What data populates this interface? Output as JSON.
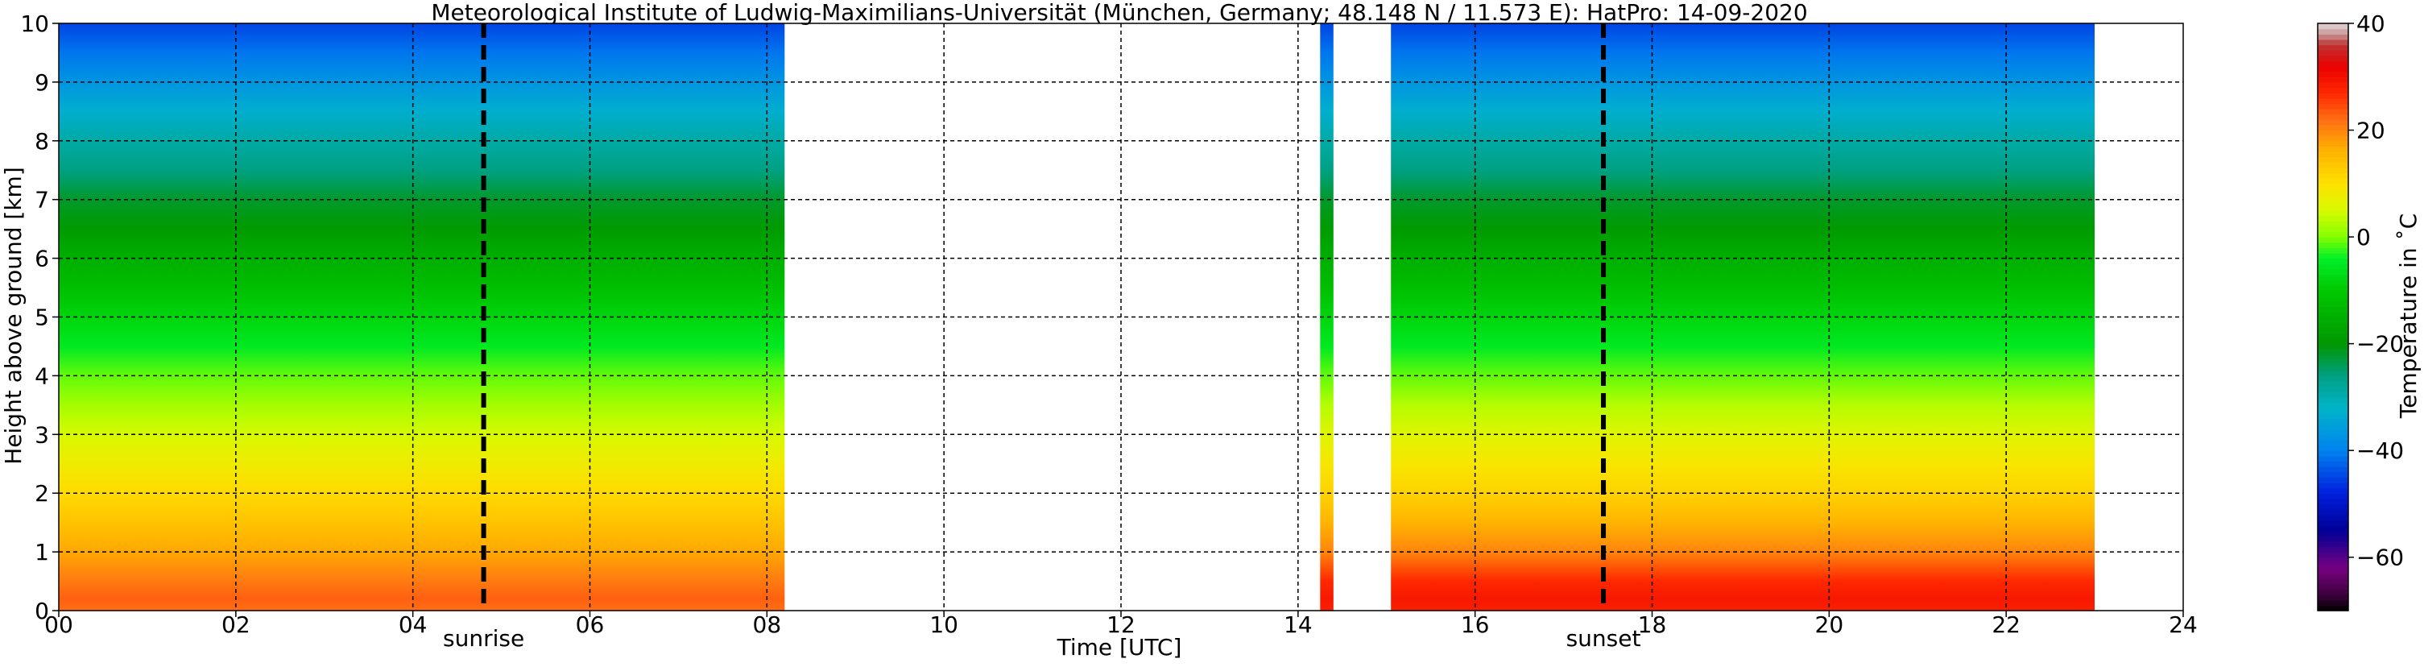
{
  "chart_data": {
    "type": "heatmap",
    "title": "Meteorological Institute of Ludwig-Maximilians-Universität (München, Germany; 48.148 N / 11.573 E):    HatPro: 14-09-2020",
    "xlabel": "Time [UTC]",
    "ylabel": "Height above ground [km]",
    "xlim": [
      0,
      24
    ],
    "ylim": [
      0,
      10
    ],
    "x_ticks": [
      "00",
      "02",
      "04",
      "06",
      "08",
      "10",
      "12",
      "14",
      "16",
      "18",
      "20",
      "22",
      "24"
    ],
    "y_ticks": [
      "0",
      "1",
      "2",
      "3",
      "4",
      "5",
      "6",
      "7",
      "8",
      "9",
      "10"
    ],
    "grid": true,
    "colorbar": {
      "label": "Temperature in ˚C",
      "ticks": [
        "40",
        "20",
        "0",
        "−20",
        "−40",
        "−60"
      ],
      "tick_values": [
        40,
        20,
        0,
        -20,
        -40,
        -60
      ],
      "range": [
        -70,
        40
      ]
    },
    "data_segments": [
      {
        "start_hour": 0.0,
        "end_hour": 8.2
      },
      {
        "start_hour": 14.25,
        "end_hour": 14.4
      },
      {
        "start_hour": 15.05,
        "end_hour": 23.0
      }
    ],
    "profiles": [
      {
        "segment": "morning",
        "height_km": [
          0,
          0.2,
          0.5,
          1,
          1.5,
          2,
          2.5,
          3,
          3.5,
          4,
          4.5,
          5,
          5.5,
          6,
          6.5,
          7,
          7.5,
          8,
          8.5,
          9,
          9.5,
          10
        ],
        "temperature_c": [
          22,
          23,
          21,
          17,
          14,
          11,
          8,
          5,
          2,
          -1,
          -5,
          -8,
          -12,
          -15,
          -19,
          -22,
          -26,
          -29,
          -33,
          -37,
          -41,
          -45
        ]
      },
      {
        "segment": "evening",
        "height_km": [
          0,
          0.2,
          0.5,
          1,
          1.5,
          2,
          2.5,
          3,
          3.5,
          4,
          4.5,
          5,
          5.5,
          6,
          6.5,
          7,
          7.5,
          8,
          8.5,
          9,
          9.5,
          10
        ],
        "temperature_c": [
          28,
          29,
          27,
          20,
          16,
          12,
          9,
          6,
          3,
          -1,
          -5,
          -8,
          -12,
          -15,
          -19,
          -22,
          -26,
          -29,
          -33,
          -37,
          -41,
          -45
        ]
      }
    ],
    "markers": [
      {
        "label": "sunrise",
        "hour": 4.8
      },
      {
        "label": "sunset",
        "hour": 17.45
      }
    ]
  }
}
